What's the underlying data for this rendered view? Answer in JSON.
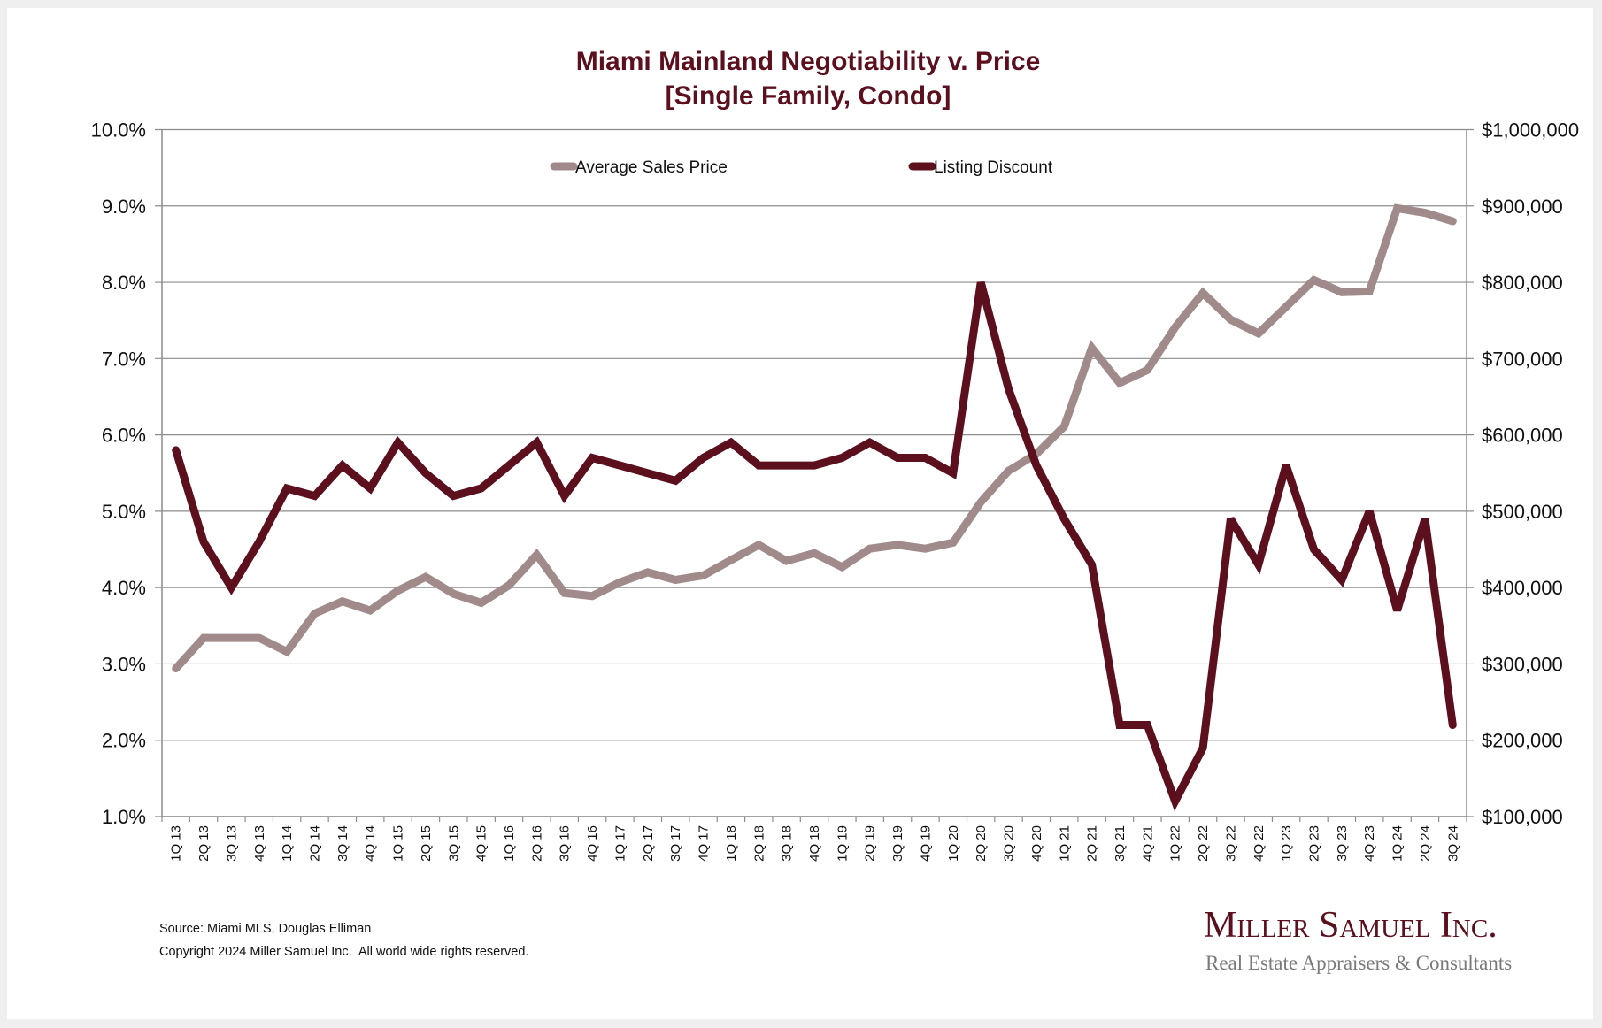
{
  "chart_data": {
    "type": "line",
    "title": "Miami Mainland Negotiability v. Price",
    "subtitle": "[Single Family, Condo]",
    "xlabel": "",
    "ylabel_left": "",
    "ylabel_right": "",
    "legend_position": "top-center",
    "grid": true,
    "categories": [
      "1Q 13",
      "2Q 13",
      "3Q 13",
      "4Q 13",
      "1Q 14",
      "2Q 14",
      "3Q 14",
      "4Q 14",
      "1Q 15",
      "2Q 15",
      "3Q 15",
      "4Q 15",
      "1Q 16",
      "2Q 16",
      "3Q 16",
      "4Q 16",
      "1Q 17",
      "2Q 17",
      "3Q 17",
      "4Q 17",
      "1Q 18",
      "2Q 18",
      "3Q 18",
      "4Q 18",
      "1Q 19",
      "2Q 19",
      "3Q 19",
      "4Q 19",
      "1Q 20",
      "2Q 20",
      "3Q 20",
      "4Q 20",
      "1Q 21",
      "2Q 21",
      "3Q 21",
      "4Q 21",
      "1Q 22",
      "2Q 22",
      "3Q 22",
      "4Q 22",
      "1Q 23",
      "2Q 23",
      "3Q 23",
      "4Q 23",
      "1Q 24",
      "2Q 24",
      "3Q 24"
    ],
    "y_left": {
      "range": [
        1.0,
        10.0
      ],
      "ticks": [
        1,
        2,
        3,
        4,
        5,
        6,
        7,
        8,
        9,
        10
      ],
      "tick_labels": [
        "1.0%",
        "2.0%",
        "3.0%",
        "4.0%",
        "5.0%",
        "6.0%",
        "7.0%",
        "8.0%",
        "9.0%",
        "10.0%"
      ]
    },
    "y_right": {
      "range": [
        100000,
        1000000
      ],
      "ticks": [
        100000,
        200000,
        300000,
        400000,
        500000,
        600000,
        700000,
        800000,
        900000,
        1000000
      ],
      "tick_labels": [
        "$100,000",
        "$200,000",
        "$300,000",
        "$400,000",
        "$500,000",
        "$600,000",
        "$700,000",
        "$800,000",
        "$900,000",
        "$1,000,000"
      ]
    },
    "series": [
      {
        "name": "Average Sales Price",
        "axis": "right",
        "color": "#a08a8a",
        "values": [
          294000,
          334000,
          334000,
          334000,
          316000,
          366000,
          382000,
          370000,
          396000,
          414000,
          392000,
          380000,
          403000,
          443000,
          393000,
          389000,
          407000,
          420000,
          410000,
          416000,
          436000,
          456000,
          435000,
          445000,
          427000,
          451000,
          456000,
          451000,
          459000,
          512000,
          553000,
          575000,
          611000,
          714000,
          668000,
          685000,
          741000,
          786000,
          751000,
          733000,
          768000,
          803000,
          787000,
          788000,
          897000,
          891000,
          880000
        ]
      },
      {
        "name": "Listing Discount",
        "axis": "left",
        "color": "#5c0f1d",
        "values": [
          5.8,
          4.6,
          4.0,
          4.6,
          5.3,
          5.2,
          5.6,
          5.3,
          5.9,
          5.5,
          5.2,
          5.3,
          5.6,
          5.9,
          5.2,
          5.7,
          5.6,
          5.5,
          5.4,
          5.7,
          5.9,
          5.6,
          5.6,
          5.6,
          5.7,
          5.9,
          5.7,
          5.7,
          5.5,
          8.0,
          6.6,
          5.6,
          4.9,
          4.3,
          2.2,
          2.2,
          1.2,
          1.9,
          4.9,
          4.3,
          5.6,
          4.5,
          4.1,
          5.0,
          3.7,
          4.9,
          2.2
        ]
      }
    ]
  },
  "footer": {
    "source": "Source: Miami MLS, Douglas Elliman",
    "copyright": "Copyright 2024 Miller Samuel Inc.  All world wide rights reserved."
  },
  "logo": {
    "name": "Miller Samuel Inc.",
    "tagline": "Real Estate Appraisers & Consultants"
  }
}
